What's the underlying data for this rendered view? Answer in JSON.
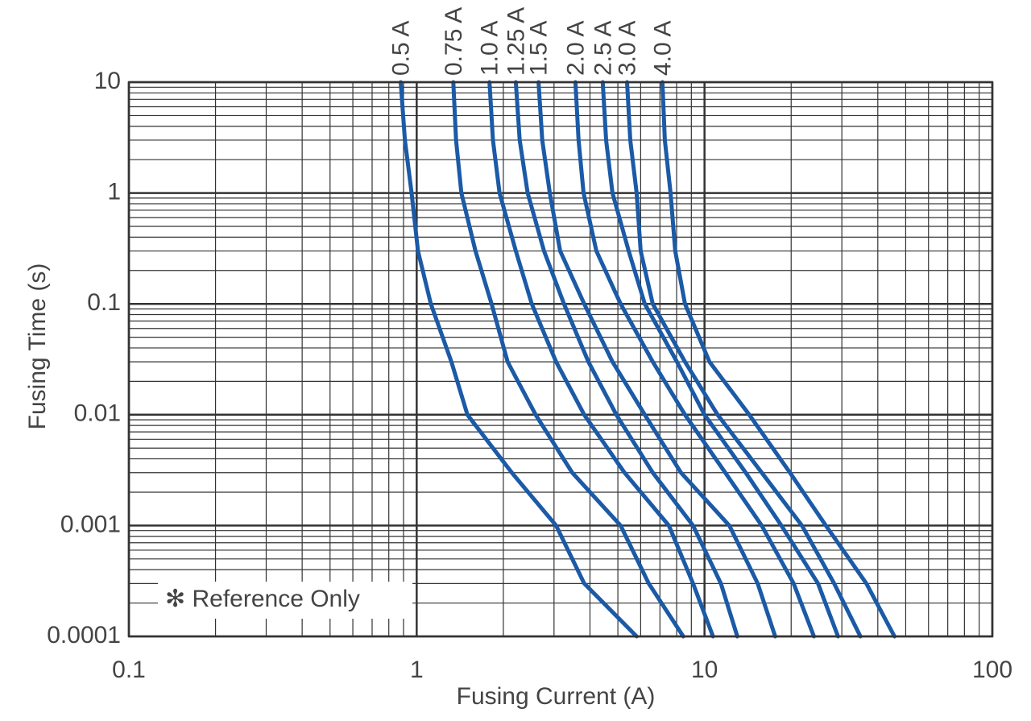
{
  "chart_data": {
    "type": "line",
    "x_label": "Fusing Current (A)",
    "y_label": "Fusing Time (s)",
    "annotation": "✻ Reference Only",
    "x_log": true,
    "y_log": true,
    "grid": true,
    "xlim": [
      0.1,
      100
    ],
    "xticks": [
      0.1,
      1,
      10,
      100
    ],
    "ylim": [
      0.0001,
      10
    ],
    "yticks": [
      0.0001,
      0.001,
      0.01,
      0.1,
      1,
      10
    ],
    "series": [
      {
        "name": "0.5 A",
        "color": "#1b5aa6",
        "x": [
          0.88,
          0.91,
          0.96,
          1.01,
          1.12,
          1.32,
          1.5,
          2.14,
          3.05,
          3.82,
          5.81
        ],
        "values": [
          10,
          3,
          1,
          0.3,
          0.1,
          0.03,
          0.01,
          0.003,
          0.001,
          0.0003,
          0.0001
        ]
      },
      {
        "name": "0.75 A",
        "color": "#1b5aa6",
        "x": [
          1.34,
          1.37,
          1.43,
          1.6,
          1.82,
          2.07,
          2.59,
          3.47,
          5.11,
          6.4,
          8.44
        ],
        "values": [
          10,
          3,
          1,
          0.3,
          0.1,
          0.03,
          0.01,
          0.003,
          0.001,
          0.0003,
          0.0001
        ]
      },
      {
        "name": "1.0 A",
        "color": "#1b5aa6",
        "x": [
          1.79,
          1.84,
          1.94,
          2.21,
          2.51,
          3.05,
          3.82,
          5.27,
          7.52,
          9.12,
          10.7
        ],
        "values": [
          10,
          3,
          1,
          0.3,
          0.1,
          0.03,
          0.01,
          0.003,
          0.001,
          0.0003,
          0.0001
        ]
      },
      {
        "name": "1.25 A",
        "color": "#1b5aa6",
        "x": [
          2.21,
          2.28,
          2.43,
          2.77,
          3.25,
          3.95,
          4.94,
          6.61,
          9.12,
          11.4,
          13
        ],
        "values": [
          10,
          3,
          1,
          0.3,
          0.1,
          0.03,
          0.01,
          0.003,
          0.001,
          0.0003,
          0.0001
        ]
      },
      {
        "name": "1.5 A",
        "color": "#1b5aa6",
        "x": [
          2.65,
          2.73,
          2.9,
          3.15,
          3.82,
          4.79,
          6.2,
          8.28,
          12.2,
          15.3,
          17.6
        ],
        "values": [
          10,
          3,
          1,
          0.3,
          0.1,
          0.03,
          0.01,
          0.003,
          0.001,
          0.0003,
          0.0001
        ]
      },
      {
        "name": "2.0 A",
        "color": "#1b5aa6",
        "x": [
          3.56,
          3.65,
          3.8,
          4.21,
          5.11,
          6.61,
          8.55,
          11.8,
          15.8,
          20.4,
          24
        ],
        "values": [
          10,
          3,
          1,
          0.3,
          0.1,
          0.03,
          0.01,
          0.003,
          0.001,
          0.0003,
          0.0001
        ]
      },
      {
        "name": "2.5 A",
        "color": "#1b5aa6",
        "x": [
          4.43,
          4.55,
          4.79,
          5.45,
          6.2,
          8.02,
          10,
          13.9,
          18.5,
          24.8,
          29.1
        ],
        "values": [
          10,
          3,
          1,
          0.3,
          0.1,
          0.03,
          0.01,
          0.003,
          0.001,
          0.0003,
          0.0001
        ]
      },
      {
        "name": "3.0 A",
        "color": "#1b5aa6",
        "x": [
          5.38,
          5.52,
          5.81,
          6,
          6.61,
          8.55,
          11.1,
          15.8,
          21.8,
          28.2,
          34.8
        ],
        "values": [
          10,
          3,
          1,
          0.3,
          0.1,
          0.03,
          0.01,
          0.003,
          0.001,
          0.0003,
          0.0001
        ]
      },
      {
        "name": "4.0 A",
        "color": "#1b5aa6",
        "x": [
          7.14,
          7.28,
          7.62,
          7.91,
          8.55,
          10.4,
          14.3,
          19.8,
          26.4,
          36.5,
          45.7
        ],
        "values": [
          10,
          3,
          1,
          0.3,
          0.1,
          0.03,
          0.01,
          0.003,
          0.001,
          0.0003,
          0.0001
        ]
      }
    ]
  }
}
